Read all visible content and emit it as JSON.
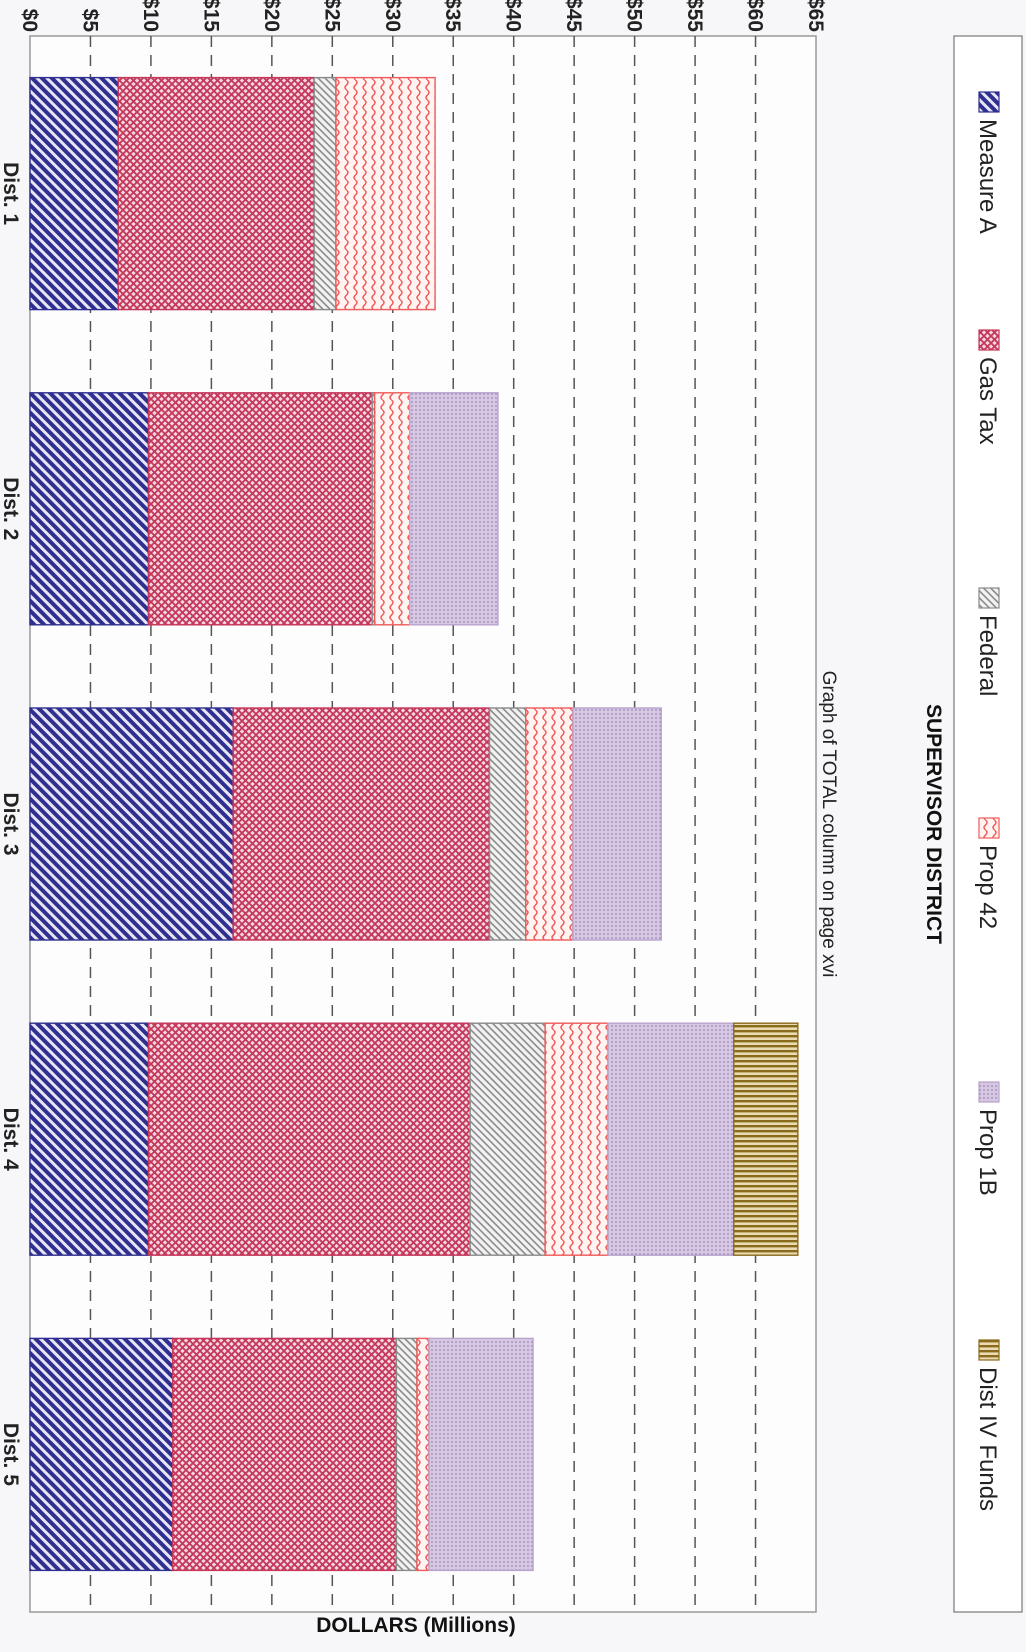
{
  "chart_data": {
    "type": "bar",
    "stacked": true,
    "orientation": "vertical",
    "page_rotation": "rotated 90 degrees clockwise",
    "note": "Graph of TOTAL column on page xvi",
    "xlabel": "SUPERVISOR DISTRICT",
    "ylabel": "DOLLARS (Millions)",
    "ylim": [
      0,
      65
    ],
    "ytick_labels": [
      "$0",
      "$5",
      "$10",
      "$15",
      "$20",
      "$25",
      "$30",
      "$35",
      "$40",
      "$45",
      "$50",
      "$55",
      "$60",
      "$65"
    ],
    "categories": [
      "Dist. 1",
      "Dist. 2",
      "Dist. 3",
      "Dist. 4",
      "Dist. 5"
    ],
    "grid": true,
    "legend_position": "bottom",
    "series": [
      {
        "name": "Measure A",
        "values": [
          7.3,
          9.8,
          16.8,
          9.8,
          11.8
        ],
        "color": "#2e2f8f",
        "pattern": "diagonal-stripes"
      },
      {
        "name": "Gas Tax",
        "values": [
          16.2,
          18.5,
          21.2,
          26.6,
          18.5
        ],
        "color": "#c4365a",
        "pattern": "crosshatch"
      },
      {
        "name": "Federal",
        "values": [
          1.8,
          0.2,
          3.0,
          6.2,
          1.7
        ],
        "color": "#8a8a8a",
        "pattern": "fine-diagonal"
      },
      {
        "name": "Prop 42",
        "values": [
          8.2,
          2.9,
          3.9,
          5.2,
          1.0
        ],
        "color": "#ef5a5a",
        "pattern": "wavy"
      },
      {
        "name": "Prop 1B",
        "values": [
          0,
          7.3,
          7.3,
          10.4,
          8.6
        ],
        "color": "#b9a3cc",
        "pattern": "dots"
      },
      {
        "name": "Dist IV Funds",
        "values": [
          0,
          0,
          0,
          5.3,
          0
        ],
        "color": "#8a6a1c",
        "pattern": "vertical-stripes"
      }
    ]
  }
}
